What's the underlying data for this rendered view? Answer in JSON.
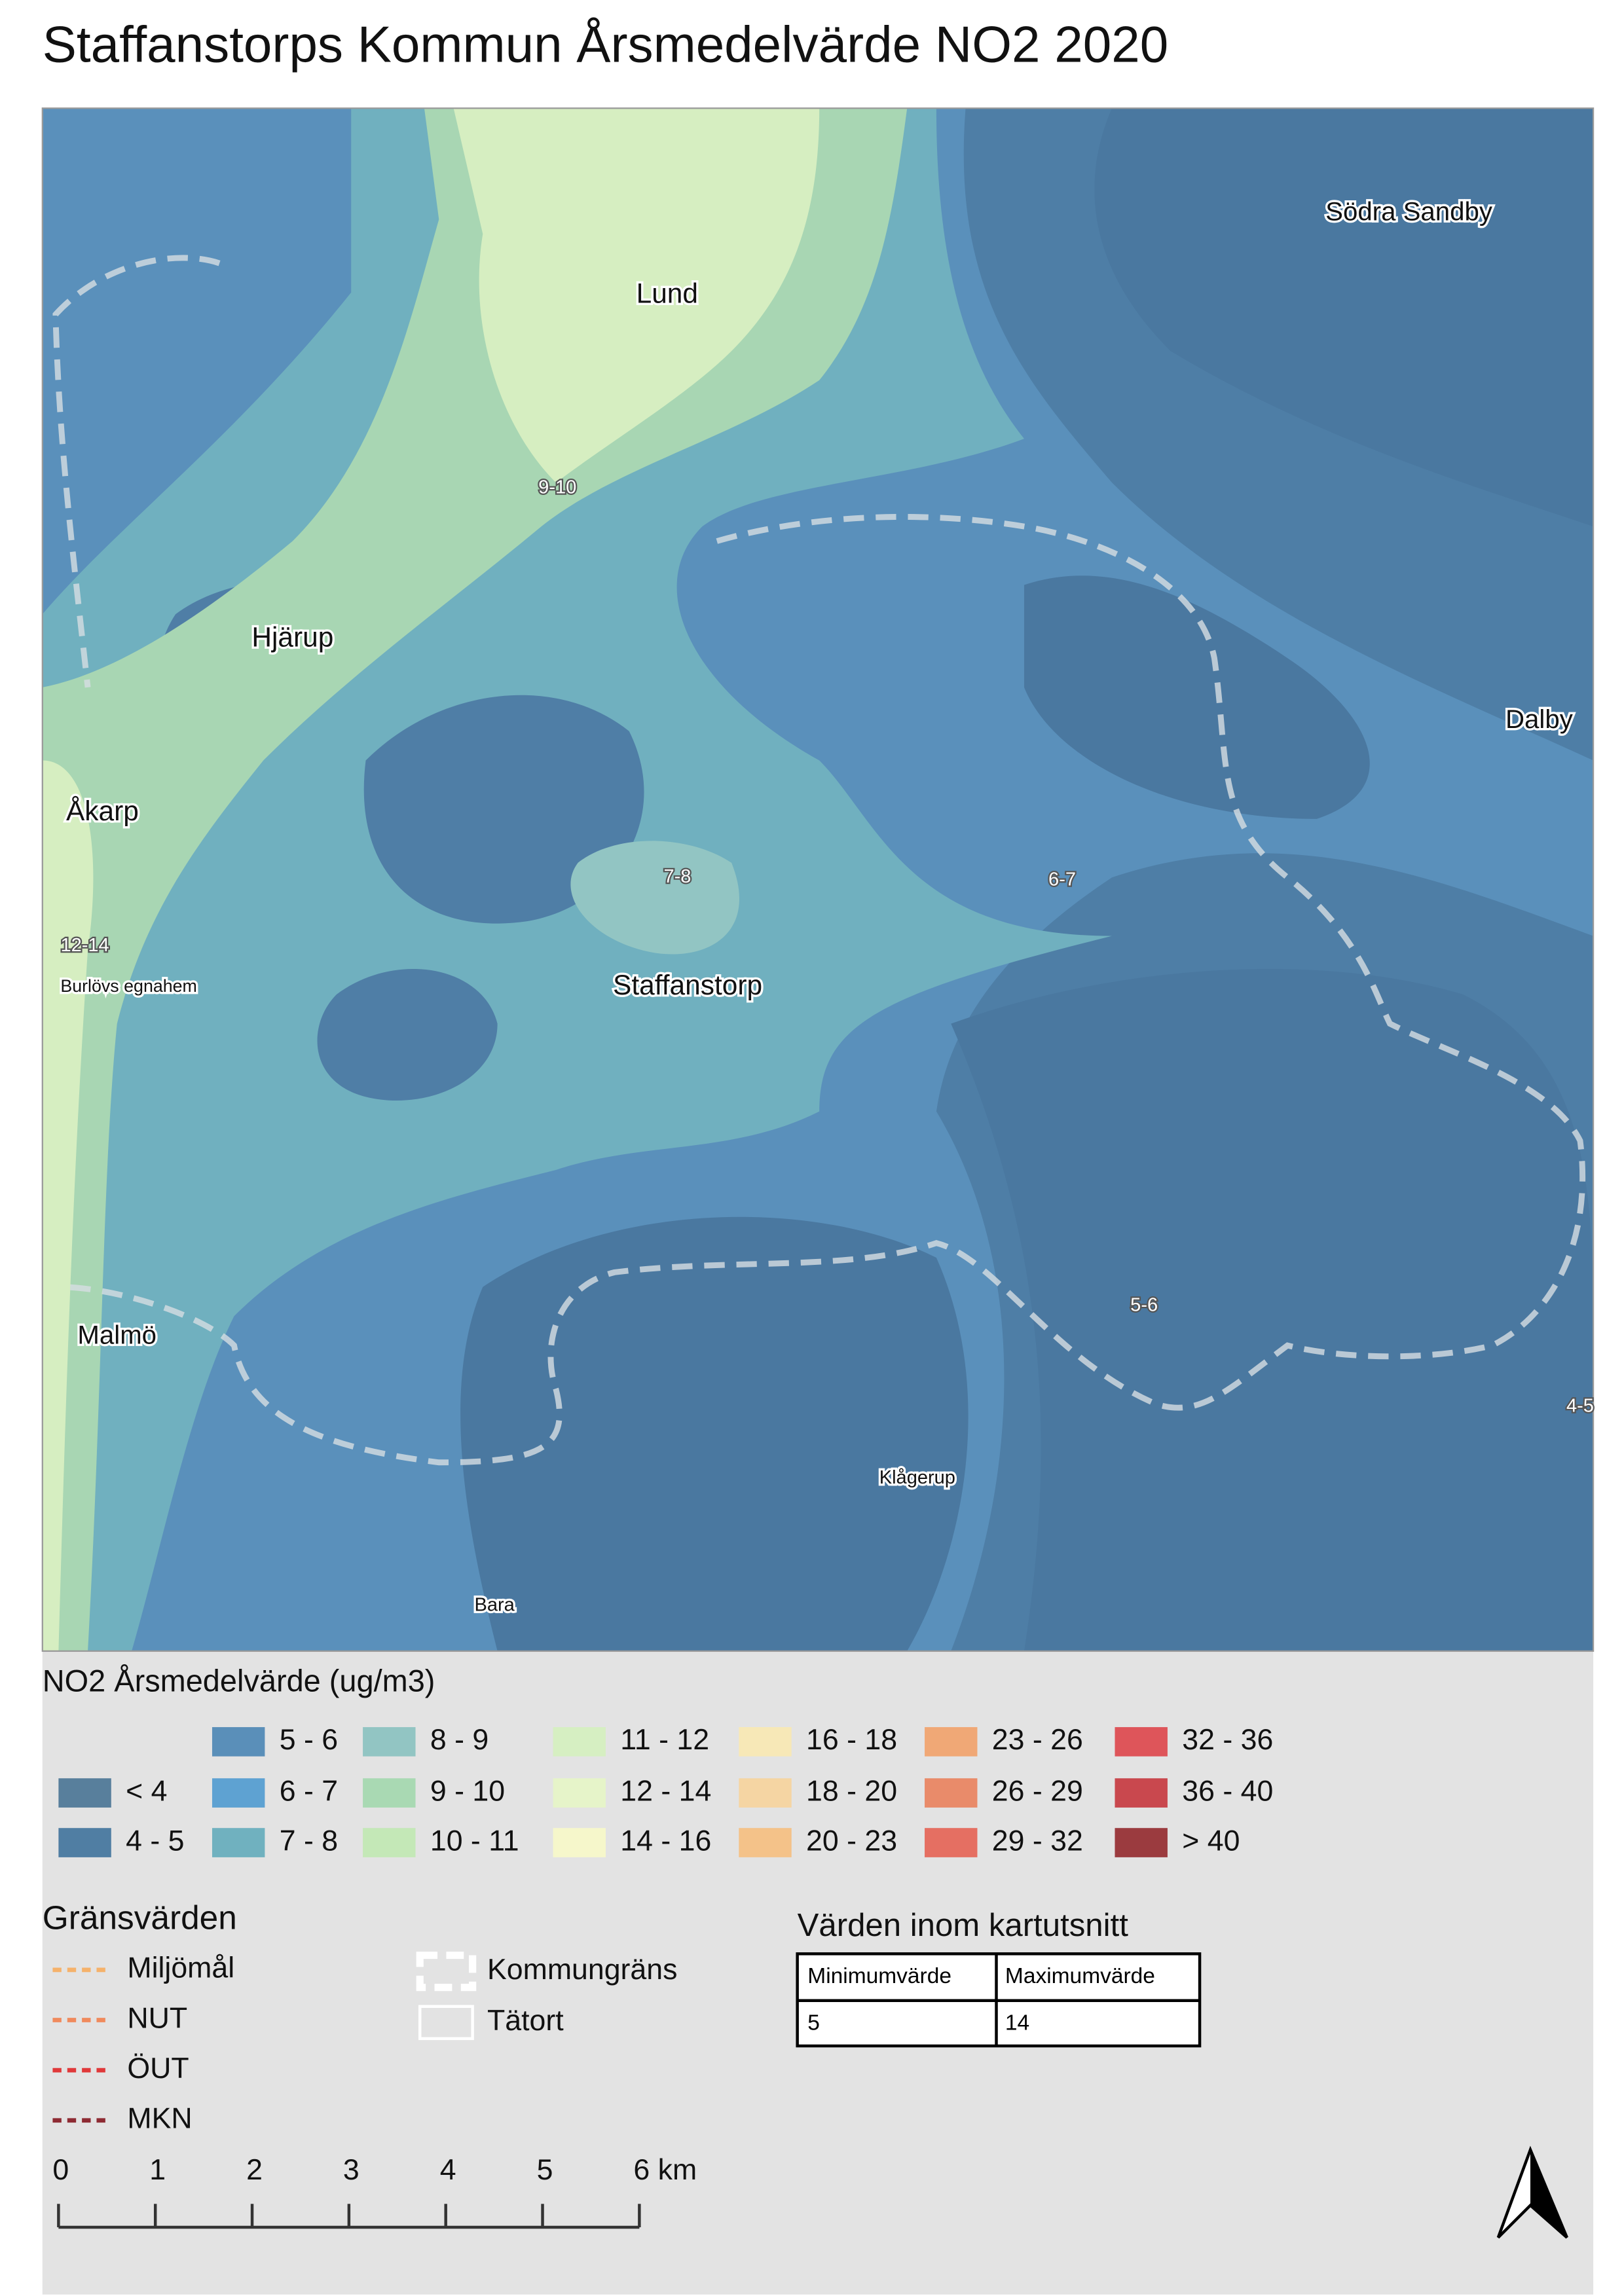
{
  "title": "Staffanstorps Kommun Årsmedelvärde NO2 2020",
  "map": {
    "places": [
      {
        "label": "Lund"
      },
      {
        "label": "Södra Sandby"
      },
      {
        "label": "Hjärup"
      },
      {
        "label": "Dalby"
      },
      {
        "label": "Åkarp"
      },
      {
        "label": "Staffanstorp"
      },
      {
        "label": "Burlövs egnahem"
      },
      {
        "label": "Malmö"
      },
      {
        "label": "Klågerup"
      },
      {
        "label": "Bara"
      }
    ],
    "contour_labels": [
      "9-10",
      "7-8",
      "6-7",
      "12-14",
      "5-6",
      "4-5"
    ]
  },
  "legend": {
    "title": "NO2 Årsmedelvärde (ug/m3)",
    "classes": [
      {
        "label": "< 4",
        "color": "#587f9c"
      },
      {
        "label": "4 - 5",
        "color": "#507ea3"
      },
      {
        "label": "5 - 6",
        "color": "#5a8fb9"
      },
      {
        "label": "6 - 7",
        "color": "#5ea2d2"
      },
      {
        "label": "7 - 8",
        "color": "#70b1bf"
      },
      {
        "label": "8 - 9",
        "color": "#92c5c3"
      },
      {
        "label": "9 - 10",
        "color": "#a9d9b3"
      },
      {
        "label": "10 - 11",
        "color": "#c4e8b7"
      },
      {
        "label": "11 - 12",
        "color": "#d6efc2"
      },
      {
        "label": "12 - 14",
        "color": "#e6f4c9"
      },
      {
        "label": "14 - 16",
        "color": "#f6f7cb"
      },
      {
        "label": "16 - 18",
        "color": "#f7e8b7"
      },
      {
        "label": "18 - 20",
        "color": "#f5d5a3"
      },
      {
        "label": "20 - 23",
        "color": "#f4c289"
      },
      {
        "label": "23 - 26",
        "color": "#f0a876"
      },
      {
        "label": "26 - 29",
        "color": "#e98b6a"
      },
      {
        "label": "29 - 32",
        "color": "#e56f62"
      },
      {
        "label": "32 - 36",
        "color": "#de555a"
      },
      {
        "label": "36 - 40",
        "color": "#c9484e"
      },
      {
        "label": "> 40",
        "color": "#9b3b3f"
      }
    ]
  },
  "limits": {
    "title": "Gränsvärden",
    "items": [
      {
        "label": "Miljömål",
        "color": "#f5b26b"
      },
      {
        "label": "NUT",
        "color": "#f08a5d"
      },
      {
        "label": "ÖUT",
        "color": "#e0393a"
      },
      {
        "label": "MKN",
        "color": "#8e2b33"
      }
    ]
  },
  "boundaries": [
    "Kommungräns",
    "Tätort"
  ],
  "extent_table": {
    "title": "Värden inom kartutsnitt",
    "header": [
      "Minimumvärde",
      "Maximumvärde"
    ],
    "rows": [
      [
        "5",
        "14"
      ]
    ]
  },
  "scale_bar": [
    "0",
    "1",
    "2",
    "3",
    "4",
    "5",
    "6 km"
  ]
}
